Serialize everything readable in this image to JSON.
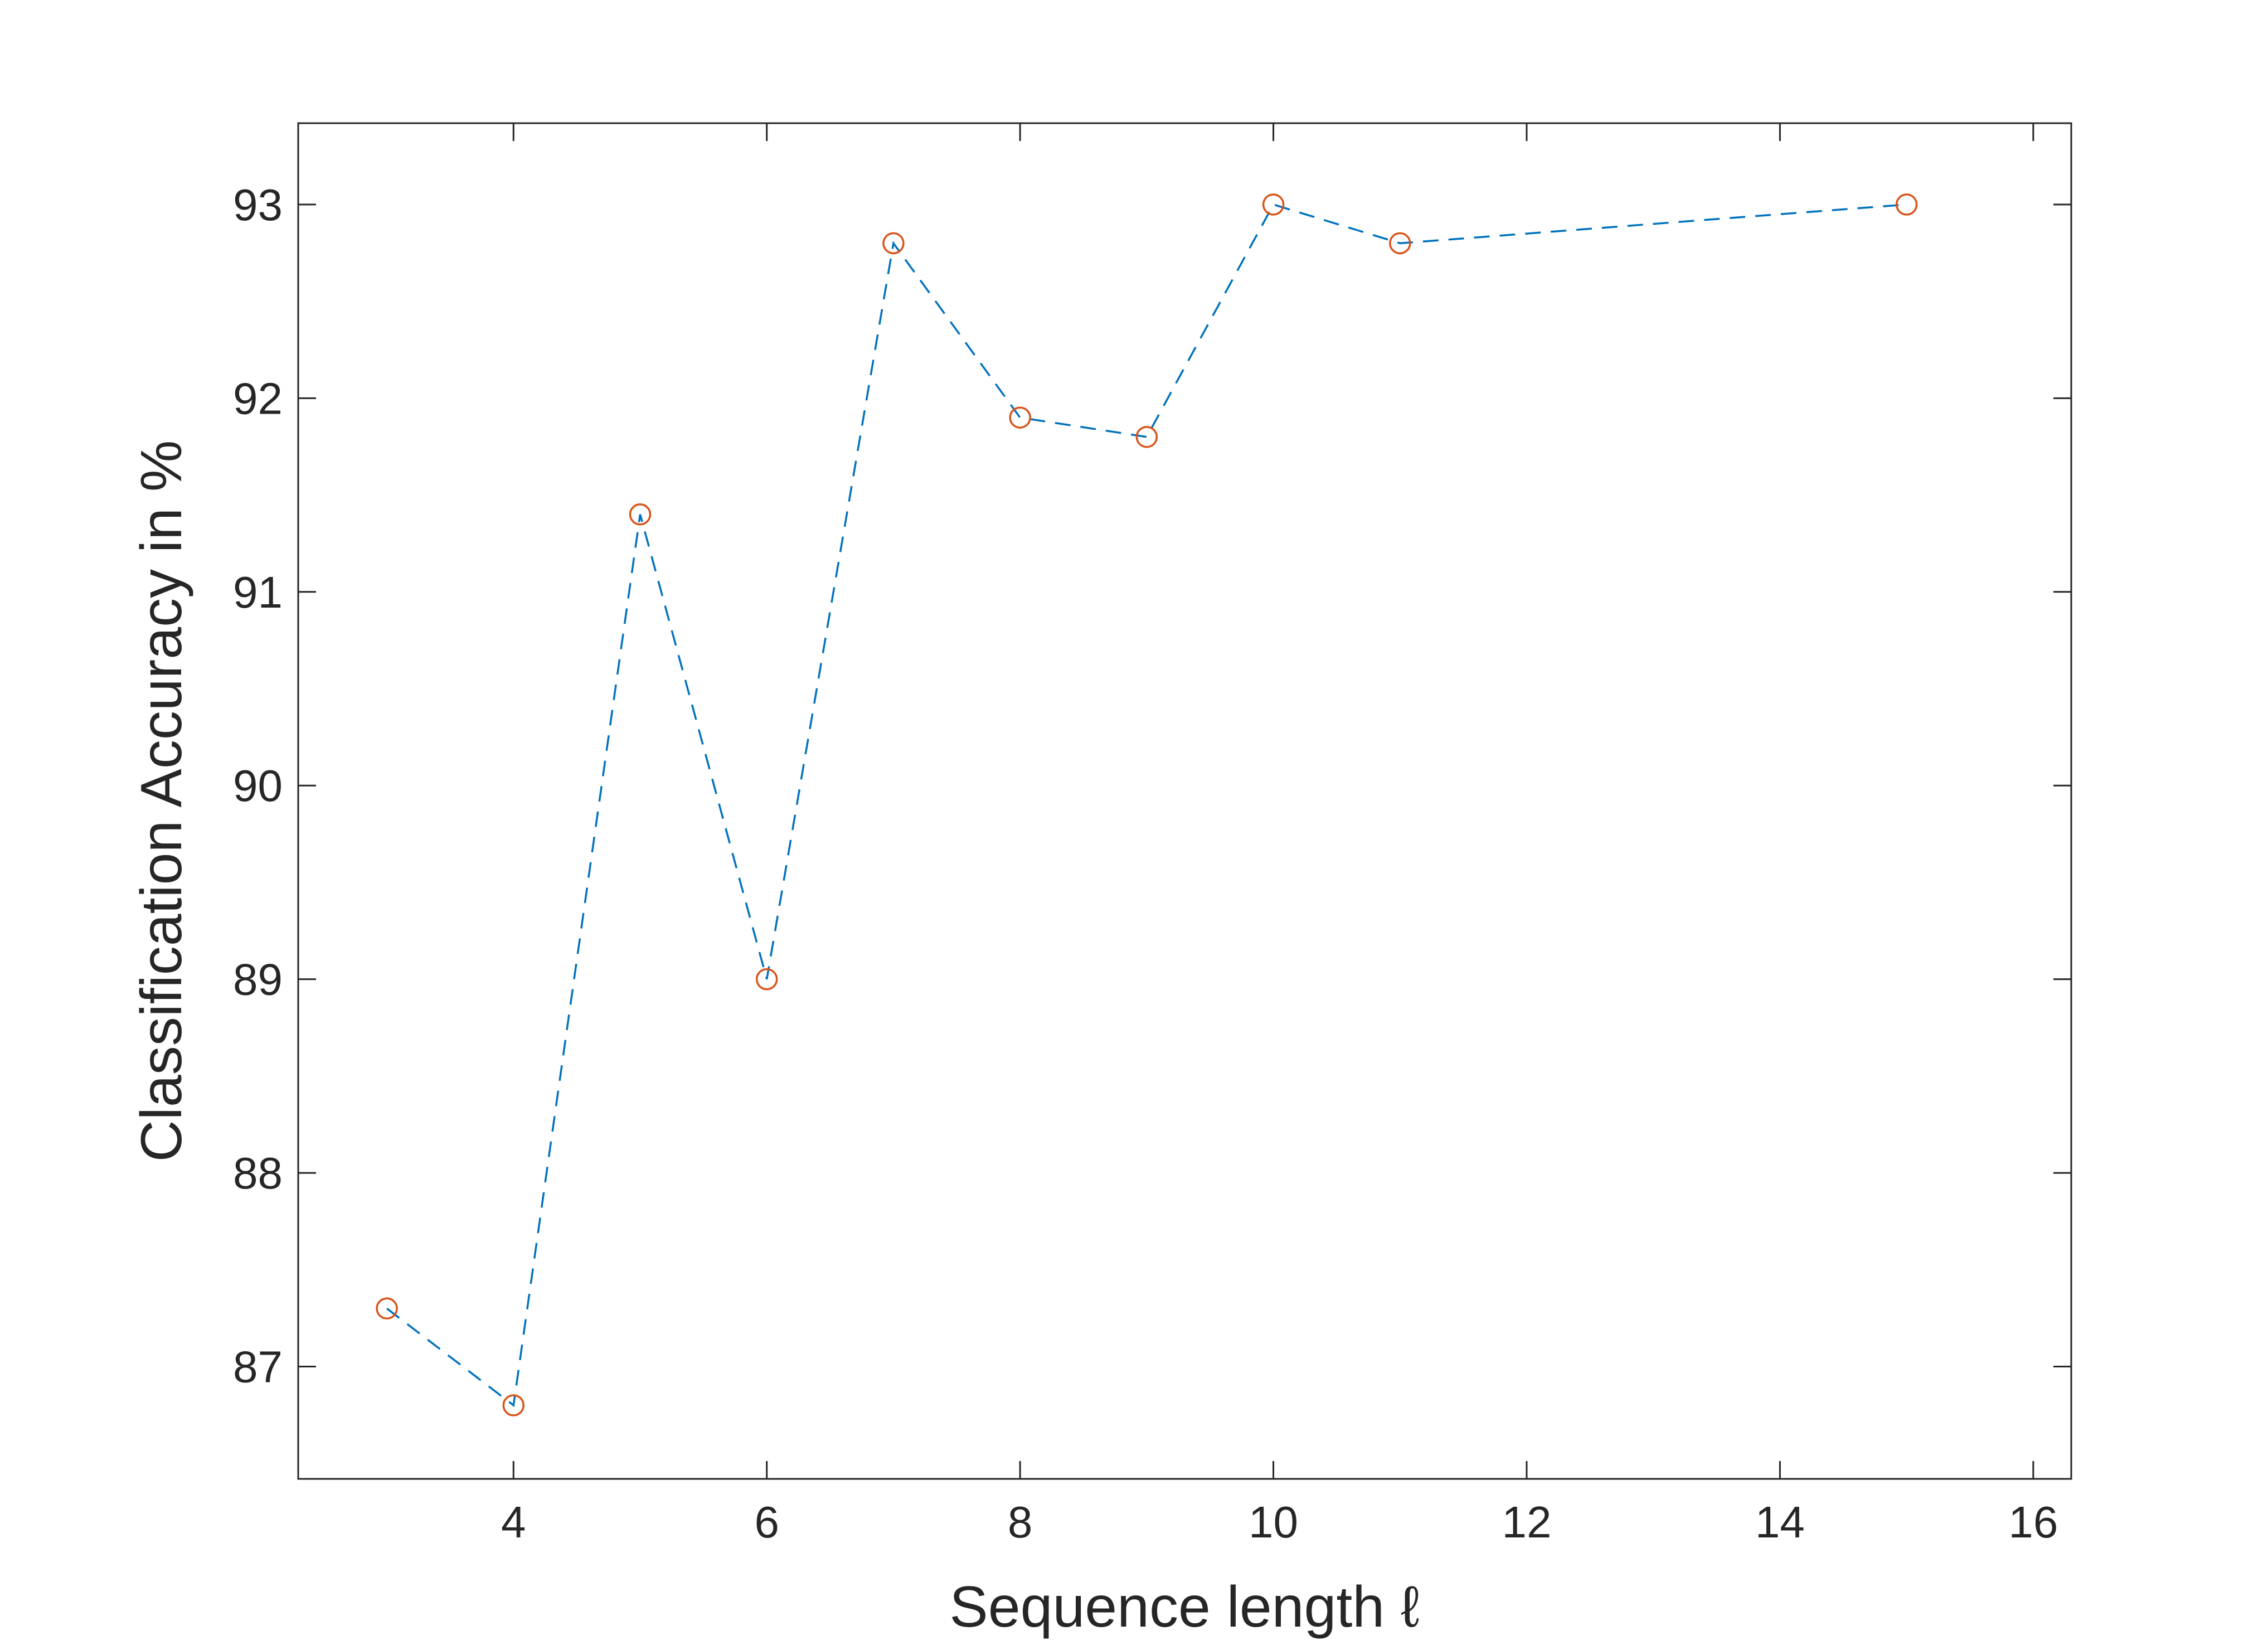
{
  "chart_data": {
    "type": "line",
    "title": "",
    "xlabel": "Sequence length ℓ",
    "ylabel": "Classification Accuracy in %",
    "xlim": [
      2.3,
      16.3
    ],
    "ylim": [
      86.42,
      93.42
    ],
    "x_ticks": [
      4,
      6,
      8,
      10,
      12,
      14,
      16
    ],
    "y_ticks": [
      87,
      88,
      89,
      90,
      91,
      92,
      93
    ],
    "grid": false,
    "legend": "none",
    "series": [
      {
        "line_style": "dashed",
        "line_color": "#0072BD",
        "marker": "circle",
        "marker_color": "#D95319",
        "x": [
          3,
          4,
          5,
          6,
          7,
          8,
          9,
          10,
          11,
          15
        ],
        "y": [
          87.3,
          86.8,
          91.4,
          89.0,
          92.8,
          91.9,
          91.8,
          93.0,
          92.8,
          93.0
        ]
      }
    ]
  }
}
